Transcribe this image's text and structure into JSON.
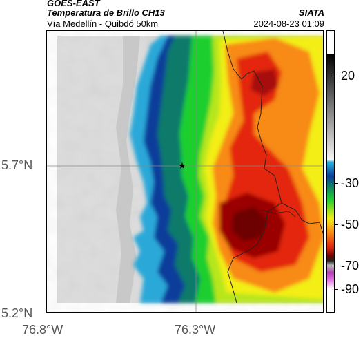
{
  "header": {
    "satellite": "GOES-EAST",
    "product": "Temperatura de Brillo CH13",
    "agency": "SIATA",
    "region": "Vía Medellín - Quibdó 50km",
    "datetime": "2024-08-23 01:09"
  },
  "axes": {
    "y_ticks": [
      "5.7°N",
      "5.2°N"
    ],
    "x_ticks": [
      "76.8°W",
      "76.3°W"
    ]
  },
  "colorbar": {
    "ticks": [
      "20",
      "-30",
      "-50",
      "-70",
      "-90"
    ]
  },
  "colors": {
    "cold_top": "#8b0000",
    "warm_surface": "#d8d8d8",
    "ocean_boundary": "#003a8c"
  },
  "marker": {
    "icon": "star-icon"
  }
}
